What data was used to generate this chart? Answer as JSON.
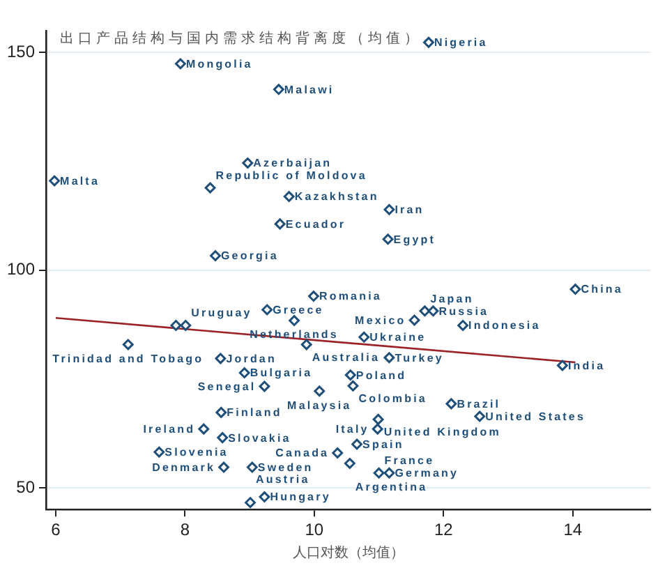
{
  "chart_data": {
    "type": "scatter",
    "ylabel": "出口产品结构与国内需求结构背离度（均值）",
    "xlabel": "人口对数（均值）",
    "xlim": [
      5.85,
      15.2
    ],
    "xticks": [
      6,
      8,
      10,
      12,
      14
    ],
    "ylim": [
      45,
      155
    ],
    "yticks": [
      50,
      100,
      150
    ],
    "grid": "y",
    "legend": false,
    "marker": "diamond",
    "series": [
      {
        "color": "#1f4e79",
        "x": [
          11.77,
          7.93,
          9.45,
          8.97,
          5.98,
          8.39,
          9.61,
          11.16,
          9.47,
          11.14,
          8.47,
          14.04,
          9.99,
          9.27,
          11.71,
          11.84,
          9.69,
          11.55,
          12.3,
          7.86,
          8.01,
          7.12,
          9.88,
          10.77,
          8.55,
          11.16,
          13.84,
          8.92,
          10.56,
          9.23,
          10.6,
          10.08,
          12.12,
          8.56,
          10.99,
          12.56,
          8.29,
          10.98,
          8.58,
          10.66,
          7.6,
          10.36,
          10.55,
          8.6,
          9.04,
          11.0,
          11.16,
          9.23,
          9.01
        ],
        "values": [
          152.3,
          147.4,
          141.5,
          124.6,
          120.5,
          118.9,
          116.9,
          113.9,
          110.6,
          107.1,
          103.3,
          95.6,
          94.0,
          90.9,
          90.6,
          90.6,
          88.4,
          88.5,
          87.3,
          87.3,
          87.3,
          82.9,
          82.9,
          84.6,
          79.7,
          79.9,
          78.1,
          76.4,
          75.9,
          73.3,
          73.4,
          72.2,
          69.3,
          67.3,
          65.7,
          66.4,
          63.5,
          63.5,
          61.5,
          60.0,
          58.2,
          58.0,
          55.6,
          54.7,
          54.7,
          53.4,
          53.4,
          47.9,
          46.6
        ]
      },
      {
        "type": "line",
        "color": "#9b2226",
        "marker": "none",
        "x": [
          6,
          14.04
        ],
        "values": [
          89.0,
          78.8
        ]
      }
    ],
    "annotations": [
      {
        "text": "Nigeria",
        "x": 11.77,
        "y": 152.3
      },
      {
        "text": "Mongolia",
        "x": 7.93,
        "y": 147.4
      },
      {
        "text": "Malawi",
        "x": 9.45,
        "y": 141.5
      },
      {
        "text": "Azerbaijan",
        "x": 8.97,
        "y": 124.6
      },
      {
        "text": "Malta",
        "x": 5.98,
        "y": 120.5
      },
      {
        "text": "Republic of Moldova",
        "x": 8.39,
        "y": 118.9
      },
      {
        "text": "Kazakhstan",
        "x": 9.61,
        "y": 116.9
      },
      {
        "text": "Iran",
        "x": 11.16,
        "y": 113.9
      },
      {
        "text": "Ecuador",
        "x": 9.47,
        "y": 110.6
      },
      {
        "text": "Egypt",
        "x": 11.14,
        "y": 107.1
      },
      {
        "text": "Georgia",
        "x": 8.47,
        "y": 103.3
      },
      {
        "text": "China",
        "x": 14.04,
        "y": 95.6
      },
      {
        "text": "Romania",
        "x": 9.99,
        "y": 94.0
      },
      {
        "text": "Greece",
        "x": 9.27,
        "y": 90.9
      },
      {
        "text": "Japan",
        "x": 11.71,
        "y": 90.6
      },
      {
        "text": "Russia",
        "x": 11.84,
        "y": 90.6
      },
      {
        "text": "Netherlands",
        "x": 9.69,
        "y": 88.4
      },
      {
        "text": "Mexico",
        "x": 11.55,
        "y": 88.5
      },
      {
        "text": "Indonesia",
        "x": 12.3,
        "y": 87.3
      },
      {
        "text": "Uruguay",
        "x": 8.01,
        "y": 87.3
      },
      {
        "text": "Trinidad and Tobago",
        "x": 7.12,
        "y": 82.9
      },
      {
        "text": "Australia",
        "x": 9.88,
        "y": 82.9
      },
      {
        "text": "Ukraine",
        "x": 10.77,
        "y": 84.6
      },
      {
        "text": "Jordan",
        "x": 8.55,
        "y": 79.7
      },
      {
        "text": "Turkey",
        "x": 11.16,
        "y": 79.9
      },
      {
        "text": "India",
        "x": 13.84,
        "y": 78.1
      },
      {
        "text": "Bulgaria",
        "x": 8.92,
        "y": 76.4
      },
      {
        "text": "Poland",
        "x": 10.56,
        "y": 75.9
      },
      {
        "text": "Senegal",
        "x": 9.23,
        "y": 73.3
      },
      {
        "text": "Colombia",
        "x": 10.6,
        "y": 73.4
      },
      {
        "text": "Malaysia",
        "x": 10.08,
        "y": 72.2
      },
      {
        "text": "Brazil",
        "x": 12.12,
        "y": 69.3
      },
      {
        "text": "Finland",
        "x": 8.56,
        "y": 67.3
      },
      {
        "text": "United Kingdom",
        "x": 10.99,
        "y": 65.7
      },
      {
        "text": "United States",
        "x": 12.56,
        "y": 66.4
      },
      {
        "text": "Ireland",
        "x": 8.29,
        "y": 63.5
      },
      {
        "text": "Italy",
        "x": 10.98,
        "y": 63.5
      },
      {
        "text": "Slovakia",
        "x": 8.58,
        "y": 61.5
      },
      {
        "text": "Spain",
        "x": 10.66,
        "y": 60.0
      },
      {
        "text": "Slovenia",
        "x": 7.6,
        "y": 58.2
      },
      {
        "text": "Canada",
        "x": 10.36,
        "y": 58.0
      },
      {
        "text": "Argentina",
        "x": 10.55,
        "y": 55.6
      },
      {
        "text": "Denmark",
        "x": 8.6,
        "y": 54.7
      },
      {
        "text": "Sweden",
        "x": 9.04,
        "y": 54.7
      },
      {
        "text": "France",
        "x": 11.0,
        "y": 53.4
      },
      {
        "text": "Germany",
        "x": 11.16,
        "y": 53.4
      },
      {
        "text": "Hungary",
        "x": 9.23,
        "y": 47.9
      },
      {
        "text": "Austria",
        "x": 9.01,
        "y": 46.6
      }
    ]
  }
}
